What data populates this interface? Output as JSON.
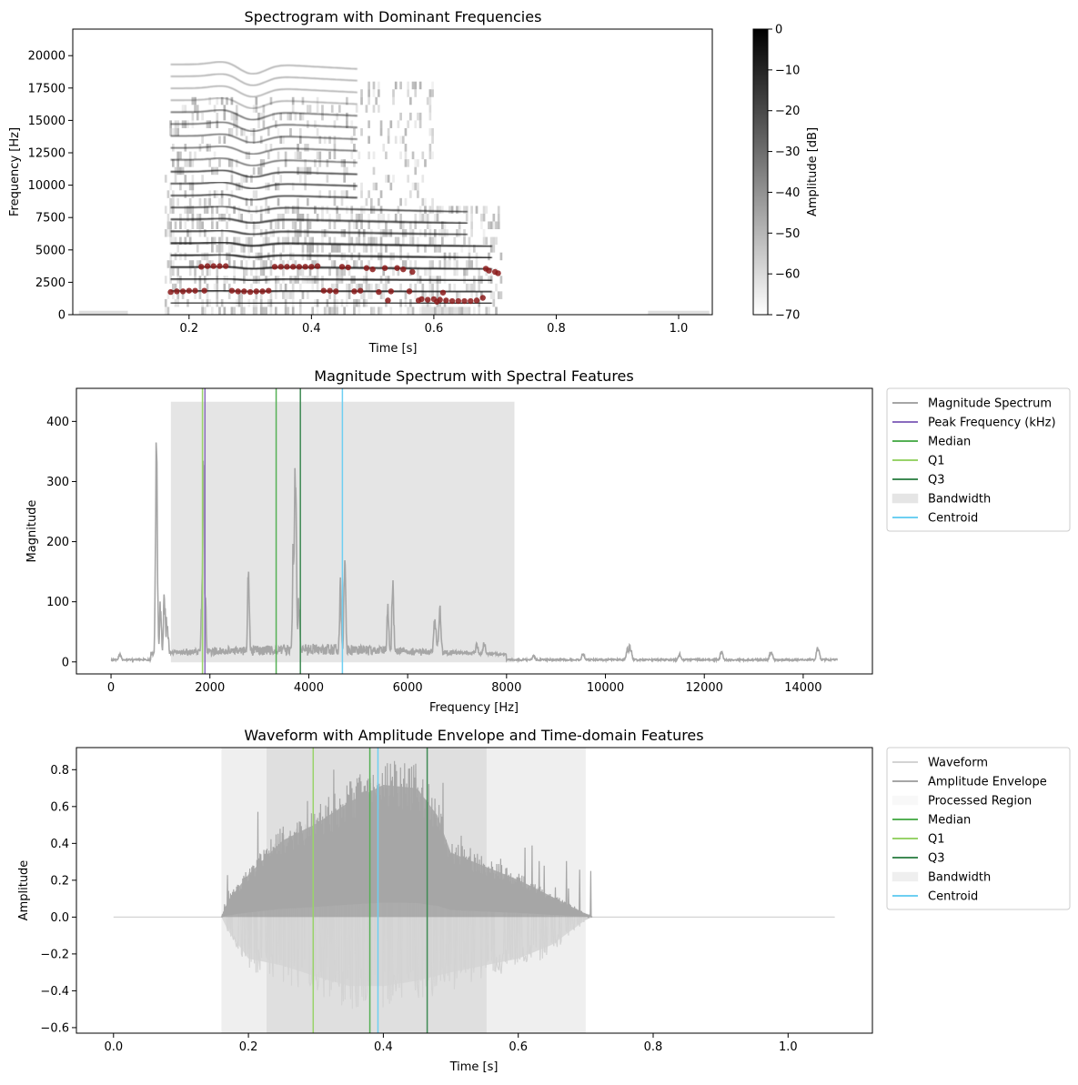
{
  "chart_data": [
    {
      "type": "heatmap",
      "title": "Spectrogram with Dominant Frequencies",
      "xlabel": "Time [s]",
      "ylabel": "Frequency [Hz]",
      "xlim": [
        0.01,
        1.055
      ],
      "ylim": [
        0,
        22050
      ],
      "xticks": [
        0.2,
        0.4,
        0.6,
        0.8,
        1.0
      ],
      "xtick_labels": [
        "0.2",
        "0.4",
        "0.6",
        "0.8",
        "1.0"
      ],
      "yticks": [
        0,
        2500,
        5000,
        7500,
        10000,
        12500,
        15000,
        17500,
        20000
      ],
      "ytick_labels": [
        "0",
        "2500",
        "5000",
        "7500",
        "10000",
        "12500",
        "15000",
        "17500",
        "20000"
      ],
      "colorbar": {
        "label": "Amplitude [dB]",
        "range": [
          -70,
          0
        ],
        "ticks": [
          0,
          -10,
          -20,
          -30,
          -40,
          -50,
          -60,
          -70
        ],
        "tick_labels": [
          "0",
          "−10",
          "−20",
          "−30",
          "−40",
          "−50",
          "−60",
          "−70"
        ],
        "colormap": "gray_r"
      },
      "grid": false,
      "voiced_interval": [
        0.16,
        0.71
      ],
      "bright_interval": [
        0.16,
        0.48
      ],
      "harmonic_spacing_hz": 920,
      "dominant_color": "#8b1a1a",
      "dominant_frequencies": [
        {
          "t": 0.17,
          "f": 1750
        },
        {
          "t": 0.18,
          "f": 1800
        },
        {
          "t": 0.19,
          "f": 1800
        },
        {
          "t": 0.2,
          "f": 1850
        },
        {
          "t": 0.21,
          "f": 1850
        },
        {
          "t": 0.22,
          "f": 3700
        },
        {
          "t": 0.225,
          "f": 1850
        },
        {
          "t": 0.23,
          "f": 3750
        },
        {
          "t": 0.24,
          "f": 3750
        },
        {
          "t": 0.25,
          "f": 3750
        },
        {
          "t": 0.26,
          "f": 3750
        },
        {
          "t": 0.27,
          "f": 1850
        },
        {
          "t": 0.28,
          "f": 1800
        },
        {
          "t": 0.29,
          "f": 1800
        },
        {
          "t": 0.3,
          "f": 1750
        },
        {
          "t": 0.31,
          "f": 1800
        },
        {
          "t": 0.32,
          "f": 1800
        },
        {
          "t": 0.33,
          "f": 1850
        },
        {
          "t": 0.34,
          "f": 3700
        },
        {
          "t": 0.35,
          "f": 3700
        },
        {
          "t": 0.36,
          "f": 3700
        },
        {
          "t": 0.37,
          "f": 3700
        },
        {
          "t": 0.38,
          "f": 3700
        },
        {
          "t": 0.39,
          "f": 3700
        },
        {
          "t": 0.4,
          "f": 3700
        },
        {
          "t": 0.41,
          "f": 3750
        },
        {
          "t": 0.42,
          "f": 1850
        },
        {
          "t": 0.43,
          "f": 1850
        },
        {
          "t": 0.44,
          "f": 1800
        },
        {
          "t": 0.45,
          "f": 3700
        },
        {
          "t": 0.46,
          "f": 3650
        },
        {
          "t": 0.47,
          "f": 1800
        },
        {
          "t": 0.48,
          "f": 1850
        },
        {
          "t": 0.49,
          "f": 3600
        },
        {
          "t": 0.5,
          "f": 3500
        },
        {
          "t": 0.51,
          "f": 1750
        },
        {
          "t": 0.52,
          "f": 3600
        },
        {
          "t": 0.525,
          "f": 1100
        },
        {
          "t": 0.53,
          "f": 1800
        },
        {
          "t": 0.54,
          "f": 3600
        },
        {
          "t": 0.55,
          "f": 3500
        },
        {
          "t": 0.56,
          "f": 1800
        },
        {
          "t": 0.565,
          "f": 3300
        },
        {
          "t": 0.575,
          "f": 1100
        },
        {
          "t": 0.58,
          "f": 1200
        },
        {
          "t": 0.59,
          "f": 1150
        },
        {
          "t": 0.6,
          "f": 1200
        },
        {
          "t": 0.605,
          "f": 1000
        },
        {
          "t": 0.61,
          "f": 1150
        },
        {
          "t": 0.615,
          "f": 1700
        },
        {
          "t": 0.62,
          "f": 1100
        },
        {
          "t": 0.63,
          "f": 1050
        },
        {
          "t": 0.64,
          "f": 1050
        },
        {
          "t": 0.65,
          "f": 1050
        },
        {
          "t": 0.66,
          "f": 1050
        },
        {
          "t": 0.67,
          "f": 1100
        },
        {
          "t": 0.68,
          "f": 1300
        },
        {
          "t": 0.685,
          "f": 3550
        },
        {
          "t": 0.69,
          "f": 3400
        },
        {
          "t": 0.7,
          "f": 3300
        },
        {
          "t": 0.705,
          "f": 3200
        }
      ]
    },
    {
      "type": "line",
      "title": "Magnitude Spectrum with Spectral Features",
      "xlabel": "Frequency [Hz]",
      "ylabel": "Magnitude",
      "xlim": [
        -700,
        15400
      ],
      "ylim": [
        -20,
        455
      ],
      "xticks": [
        0,
        2000,
        4000,
        6000,
        8000,
        10000,
        12000,
        14000
      ],
      "xtick_labels": [
        "0",
        "2000",
        "4000",
        "6000",
        "8000",
        "10000",
        "12000",
        "14000"
      ],
      "yticks": [
        0,
        100,
        200,
        300,
        400
      ],
      "ytick_labels": [
        "0",
        "100",
        "200",
        "300",
        "400"
      ],
      "grid": false,
      "legend_placement": "outside-upper-right",
      "series": [
        {
          "name": "Magnitude Spectrum",
          "color": "#a6a6a6",
          "x_range": [
            0,
            14700
          ],
          "peaks": [
            {
              "f": 180,
              "a": 15
            },
            {
              "f": 920,
              "a": 405
            },
            {
              "f": 1000,
              "a": 110
            },
            {
              "f": 1080,
              "a": 132
            },
            {
              "f": 1130,
              "a": 80
            },
            {
              "f": 1840,
              "a": 140
            },
            {
              "f": 1870,
              "a": 400
            },
            {
              "f": 1900,
              "a": 150
            },
            {
              "f": 2780,
              "a": 168
            },
            {
              "f": 3400,
              "a": 15
            },
            {
              "f": 3690,
              "a": 250
            },
            {
              "f": 3730,
              "a": 412
            },
            {
              "f": 3800,
              "a": 120
            },
            {
              "f": 4640,
              "a": 148
            },
            {
              "f": 4730,
              "a": 230
            },
            {
              "f": 5600,
              "a": 110
            },
            {
              "f": 5700,
              "a": 166
            },
            {
              "f": 6550,
              "a": 78
            },
            {
              "f": 6650,
              "a": 100
            },
            {
              "f": 7400,
              "a": 36
            },
            {
              "f": 7550,
              "a": 42
            },
            {
              "f": 8550,
              "a": 13
            },
            {
              "f": 9550,
              "a": 18
            },
            {
              "f": 10450,
              "a": 25
            },
            {
              "f": 10500,
              "a": 32
            },
            {
              "f": 11500,
              "a": 17
            },
            {
              "f": 12350,
              "a": 20
            },
            {
              "f": 13350,
              "a": 22
            },
            {
              "f": 14300,
              "a": 30
            }
          ]
        }
      ],
      "markers": [
        {
          "name": "Peak Frequency (kHz)",
          "kind": "vline",
          "x": 1900,
          "color": "#8a6bbe"
        },
        {
          "name": "Median",
          "kind": "vline",
          "x": 3340,
          "color": "#55b055"
        },
        {
          "name": "Q1",
          "kind": "vline",
          "x": 1850,
          "color": "#99d36a"
        },
        {
          "name": "Q3",
          "kind": "vline",
          "x": 3830,
          "color": "#3f8a54"
        },
        {
          "name": "Bandwidth",
          "kind": "span",
          "x0": 1220,
          "x1": 8150,
          "ymax": 432,
          "color": "#bfbfbf"
        },
        {
          "name": "Centroid",
          "kind": "vline",
          "x": 4680,
          "color": "#6ecff2"
        }
      ]
    },
    {
      "type": "area",
      "title": "Waveform with Amplitude Envelope and Time-domain Features",
      "xlabel": "Time [s]",
      "ylabel": "Amplitude",
      "xlim": [
        -0.055,
        1.125
      ],
      "ylim": [
        -0.63,
        0.92
      ],
      "xticks": [
        0.0,
        0.2,
        0.4,
        0.6,
        0.8,
        1.0
      ],
      "xtick_labels": [
        "0.0",
        "0.2",
        "0.4",
        "0.6",
        "0.8",
        "1.0"
      ],
      "yticks": [
        -0.6,
        -0.4,
        -0.2,
        0.0,
        0.2,
        0.4,
        0.6,
        0.8
      ],
      "ytick_labels": [
        "−0.6",
        "−0.4",
        "−0.2",
        "0.0",
        "0.2",
        "0.4",
        "0.6",
        "0.8"
      ],
      "grid": false,
      "legend_placement": "outside-upper-right",
      "series": [
        {
          "name": "Waveform",
          "color": "#d3d3d3",
          "x_range": [
            0.0,
            1.07
          ],
          "envelope_neg": [
            [
              0.16,
              0.0
            ],
            [
              0.17,
              -0.1
            ],
            [
              0.2,
              -0.3
            ],
            [
              0.25,
              -0.35
            ],
            [
              0.3,
              -0.43
            ],
            [
              0.35,
              -0.5
            ],
            [
              0.4,
              -0.5
            ],
            [
              0.45,
              -0.46
            ],
            [
              0.5,
              -0.4
            ],
            [
              0.55,
              -0.35
            ],
            [
              0.6,
              -0.3
            ],
            [
              0.65,
              -0.2
            ],
            [
              0.7,
              -0.02
            ],
            [
              0.71,
              0.0
            ]
          ]
        },
        {
          "name": "Amplitude Envelope",
          "color": "#a6a6a6",
          "envelope_pos": [
            [
              0.16,
              0.0
            ],
            [
              0.17,
              0.1
            ],
            [
              0.2,
              0.25
            ],
            [
              0.25,
              0.45
            ],
            [
              0.3,
              0.55
            ],
            [
              0.35,
              0.68
            ],
            [
              0.4,
              0.78
            ],
            [
              0.45,
              0.76
            ],
            [
              0.48,
              0.6
            ],
            [
              0.5,
              0.38
            ],
            [
              0.55,
              0.3
            ],
            [
              0.6,
              0.22
            ],
            [
              0.65,
              0.12
            ],
            [
              0.7,
              0.02
            ],
            [
              0.71,
              0.0
            ]
          ]
        }
      ],
      "markers": [
        {
          "name": "Processed Region",
          "kind": "span",
          "x0": 0.16,
          "x1": 0.7,
          "color": "#efefef"
        },
        {
          "name": "Median",
          "kind": "vline",
          "x": 0.38,
          "color": "#55b055"
        },
        {
          "name": "Q1",
          "kind": "vline",
          "x": 0.296,
          "color": "#99d36a"
        },
        {
          "name": "Q3",
          "kind": "vline",
          "x": 0.465,
          "color": "#3f8a54"
        },
        {
          "name": "Bandwidth",
          "kind": "span",
          "x0": 0.227,
          "x1": 0.553,
          "color": "#d9d9d9"
        },
        {
          "name": "Centroid",
          "kind": "vline",
          "x": 0.392,
          "color": "#6ecff2"
        }
      ]
    }
  ]
}
